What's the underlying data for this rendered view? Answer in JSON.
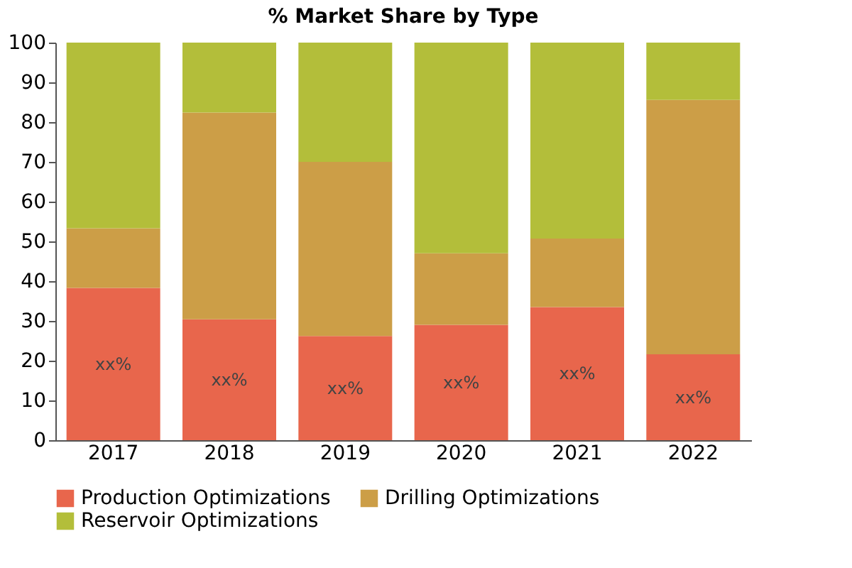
{
  "chart_data": {
    "type": "bar",
    "title": "% Market Share by Type",
    "stacked": true,
    "categories": [
      "2017",
      "2018",
      "2019",
      "2020",
      "2021",
      "2022"
    ],
    "series": [
      {
        "name": "Production Optimizations",
        "color": "#e8664c",
        "values": [
          38.3,
          30.4,
          26.2,
          29,
          33.5,
          21.6
        ],
        "value_labels": [
          "xx%",
          "xx%",
          "xx%",
          "xx%",
          "xx%",
          "xx%"
        ]
      },
      {
        "name": "Drilling Optimizations",
        "color": "#cc9e47",
        "values": [
          15,
          52,
          43.8,
          18,
          17.2,
          64
        ]
      },
      {
        "name": "Reservoir Optimizations",
        "color": "#b3be3a",
        "values": [
          46.7,
          17.6,
          30,
          53,
          49.3,
          14.4
        ]
      }
    ],
    "ylim": [
      0,
      100
    ],
    "yticks": [
      0,
      10,
      20,
      30,
      40,
      50,
      60,
      70,
      80,
      90,
      100
    ],
    "grid": false,
    "legend": "bottom"
  }
}
